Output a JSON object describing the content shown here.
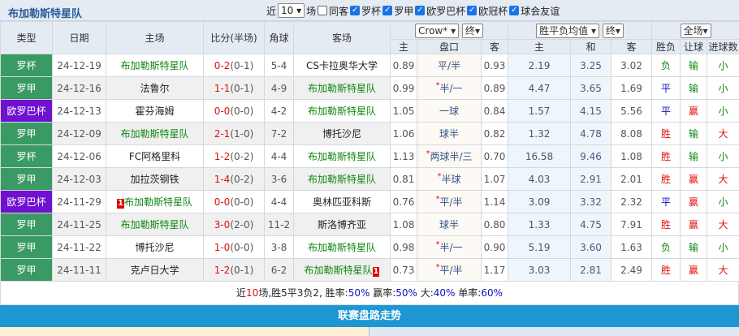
{
  "header": {
    "title": "布加勒斯特星队",
    "near_label": "近",
    "count_value": "10",
    "field_label": "场",
    "same_host_label": "同客",
    "competitions": [
      {
        "label": "罗杯",
        "checked": true
      },
      {
        "label": "罗甲",
        "checked": true
      },
      {
        "label": "欧罗巴杯",
        "checked": true
      },
      {
        "label": "欧冠杯",
        "checked": true
      },
      {
        "label": "球会友谊",
        "checked": true
      }
    ]
  },
  "columns": {
    "type": "类型",
    "date": "日期",
    "home": "主场",
    "score": "比分(半场)",
    "corner": "角球",
    "away": "客场",
    "company_select": "Crow*",
    "final_select1": "终",
    "odds_select": "胜平负均值",
    "final_select2": "终",
    "range_select": "全场",
    "sub": [
      "主",
      "盘口",
      "客",
      "主",
      "和",
      "客",
      "胜负",
      "让球",
      "进球数"
    ]
  },
  "colors": {
    "league_cup": "#3a9a64",
    "europa": "#7010d0",
    "team": "#118811",
    "score": "#e01010",
    "bar": "#1e96d4"
  },
  "rows": [
    {
      "type": "罗杯",
      "date": "24-12-19",
      "home": "布加勒斯特星队",
      "ft": "0-2",
      "ht": "(0-1)",
      "corner": "5-4",
      "away": "CS卡拉奥华大学",
      "h": "0.89",
      "line": "平/半",
      "star": false,
      "a": "0.93",
      "eh": "2.19",
      "ed": "3.25",
      "ea": "3.02",
      "wl": "负",
      "hc": "输",
      "ou": "小",
      "focus": "home"
    },
    {
      "type": "罗甲",
      "date": "24-12-16",
      "home": "法鲁尔",
      "ft": "1-1",
      "ht": "(0-1)",
      "corner": "4-9",
      "away": "布加勒斯特星队",
      "h": "0.99",
      "line": "半/一",
      "star": true,
      "a": "0.89",
      "eh": "4.47",
      "ed": "3.65",
      "ea": "1.69",
      "wl": "平",
      "hc": "输",
      "ou": "小",
      "focus": "away"
    },
    {
      "type": "欧罗巴杯",
      "date": "24-12-13",
      "home": "霍芬海姆",
      "ft": "0-0",
      "ht": "(0-0)",
      "corner": "4-2",
      "away": "布加勒斯特星队",
      "h": "1.05",
      "line": "一球",
      "star": false,
      "a": "0.84",
      "eh": "1.57",
      "ed": "4.15",
      "ea": "5.56",
      "wl": "平",
      "hc": "赢",
      "ou": "小",
      "focus": "away"
    },
    {
      "type": "罗甲",
      "date": "24-12-09",
      "home": "布加勒斯特星队",
      "ft": "2-1",
      "ht": "(1-0)",
      "corner": "7-2",
      "away": "博托沙尼",
      "h": "1.06",
      "line": "球半",
      "star": false,
      "a": "0.82",
      "eh": "1.32",
      "ed": "4.78",
      "ea": "8.08",
      "wl": "胜",
      "hc": "输",
      "ou": "大",
      "focus": "home"
    },
    {
      "type": "罗杯",
      "date": "24-12-06",
      "home": "FC阿格里科",
      "ft": "1-2",
      "ht": "(0-2)",
      "corner": "4-4",
      "away": "布加勒斯特星队",
      "h": "1.13",
      "line": "两球半/三",
      "star": true,
      "a": "0.70",
      "eh": "16.58",
      "ed": "9.46",
      "ea": "1.08",
      "wl": "胜",
      "hc": "输",
      "ou": "小",
      "focus": "away"
    },
    {
      "type": "罗甲",
      "date": "24-12-03",
      "home": "加拉茨钢铁",
      "ft": "1-4",
      "ht": "(0-2)",
      "corner": "3-6",
      "away": "布加勒斯特星队",
      "h": "0.81",
      "line": "半球",
      "star": true,
      "a": "1.07",
      "eh": "4.03",
      "ed": "2.91",
      "ea": "2.01",
      "wl": "胜",
      "hc": "赢",
      "ou": "大",
      "focus": "away"
    },
    {
      "type": "欧罗巴杯",
      "date": "24-11-29",
      "home": "布加勒斯特星队",
      "home_badge": "1",
      "ft": "0-0",
      "ht": "(0-0)",
      "corner": "4-4",
      "away": "奥林匹亚科斯",
      "h": "0.76",
      "line": "平/半",
      "star": true,
      "a": "1.14",
      "eh": "3.09",
      "ed": "3.32",
      "ea": "2.32",
      "wl": "平",
      "hc": "赢",
      "ou": "小",
      "focus": "home"
    },
    {
      "type": "罗甲",
      "date": "24-11-25",
      "home": "布加勒斯特星队",
      "ft": "3-0",
      "ht": "(2-0)",
      "corner": "11-2",
      "away": "斯洛博齐亚",
      "h": "1.08",
      "line": "球半",
      "star": false,
      "a": "0.80",
      "eh": "1.33",
      "ed": "4.75",
      "ea": "7.91",
      "wl": "胜",
      "hc": "赢",
      "ou": "大",
      "focus": "home"
    },
    {
      "type": "罗甲",
      "date": "24-11-22",
      "home": "博托沙尼",
      "ft": "1-0",
      "ht": "(0-0)",
      "corner": "3-8",
      "away": "布加勒斯特星队",
      "h": "0.98",
      "line": "半/一",
      "star": true,
      "a": "0.90",
      "eh": "5.19",
      "ed": "3.60",
      "ea": "1.63",
      "wl": "负",
      "hc": "输",
      "ou": "小",
      "focus": "away"
    },
    {
      "type": "罗甲",
      "date": "24-11-11",
      "home": "克卢日大学",
      "ft": "1-2",
      "ht": "(0-1)",
      "corner": "6-2",
      "away": "布加勒斯特星队",
      "away_badge": "1",
      "h": "0.73",
      "line": "平/半",
      "star": true,
      "a": "1.17",
      "eh": "3.03",
      "ed": "2.81",
      "ea": "2.49",
      "wl": "胜",
      "hc": "赢",
      "ou": "大",
      "focus": "away"
    }
  ],
  "summary": {
    "p1": "近",
    "n": "10",
    "p2": "场,胜5平3负2, 胜率:",
    "win": "50%",
    "p3": " 赢率:",
    "hcw": "50%",
    "p4": " 大:",
    "big": "40%",
    "p5": " 单率:",
    "odd": "60%"
  },
  "section_title": "联赛盘路走势"
}
